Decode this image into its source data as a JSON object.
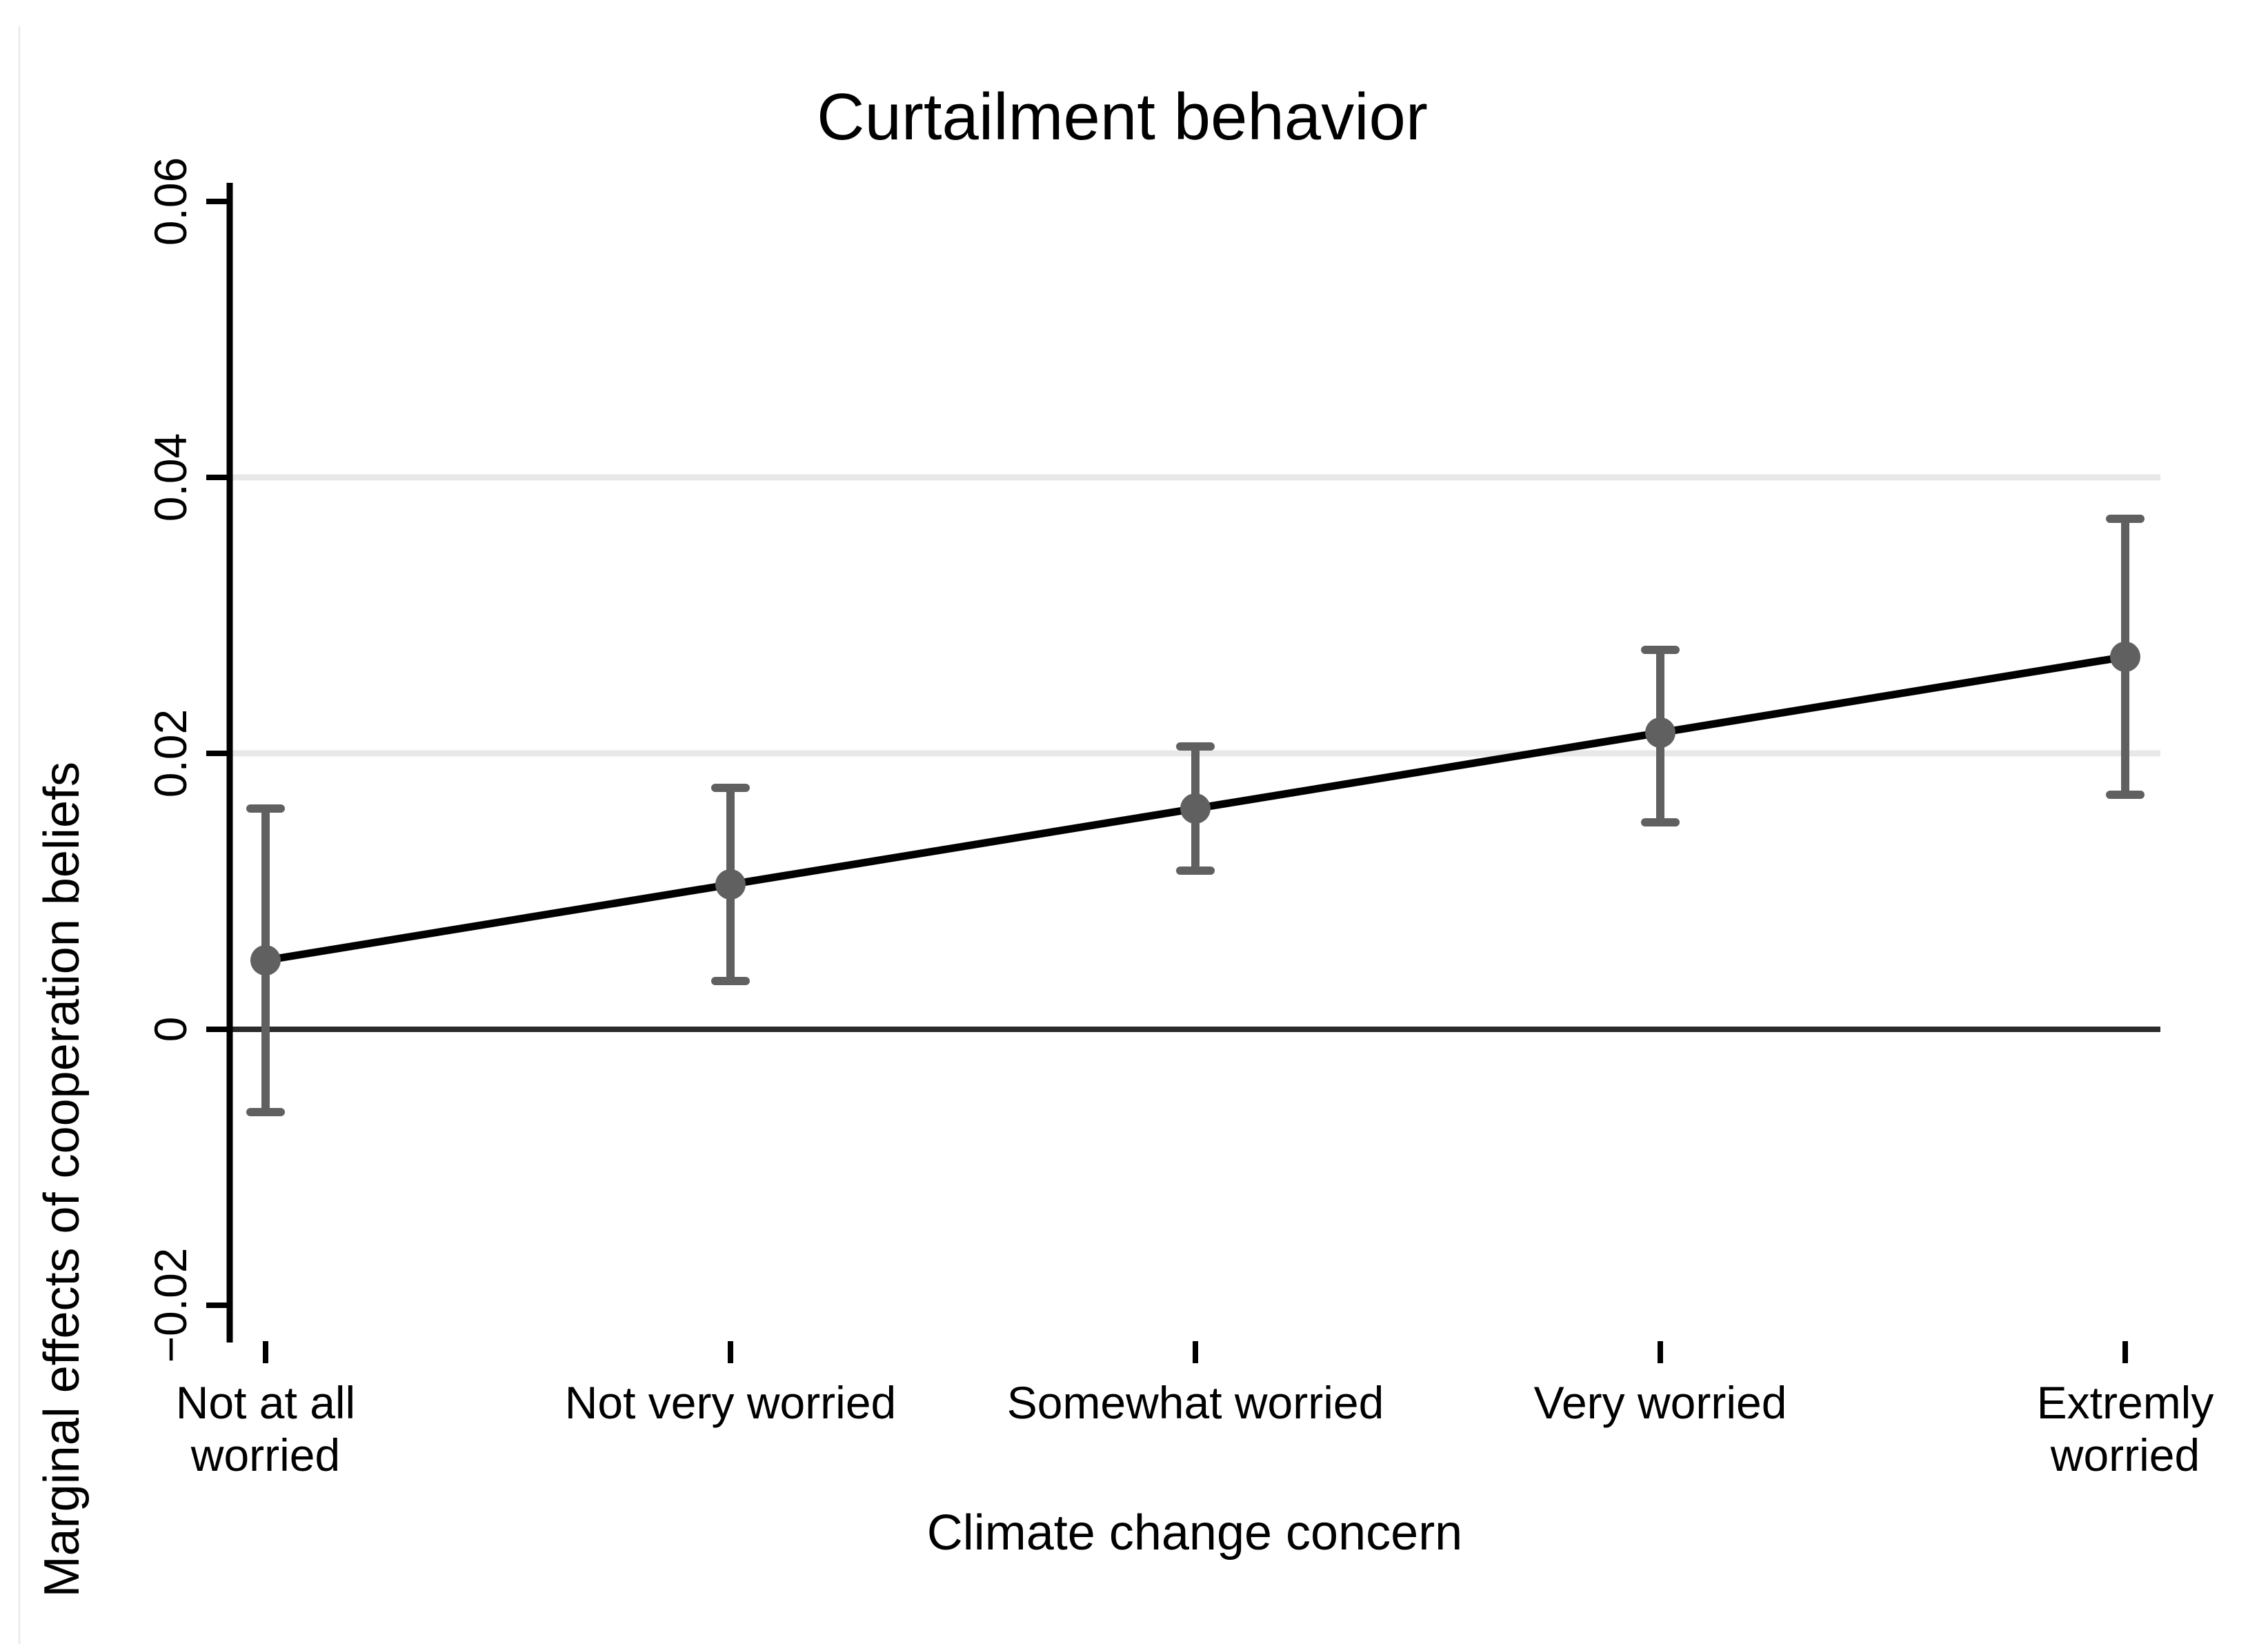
{
  "title": "Curtailment behavior",
  "chart_data": {
    "type": "scatter",
    "variant": "point_estimates_with_95ci_error_bars",
    "title": "Curtailment behavior",
    "xlabel": "Climate change concern",
    "ylabel": "Marginal effects of cooperation beliefs",
    "categories": [
      "Not at all worried",
      "Not very worried",
      "Somewhat worried",
      "Very worried",
      "Extremly worried"
    ],
    "category_tick_lines": [
      [
        "Not at all",
        "worried"
      ],
      [
        "Not very worried"
      ],
      [
        "Somewhat worried"
      ],
      [
        "Very worried"
      ],
      [
        "Extremly",
        "worried"
      ]
    ],
    "series": [
      {
        "name": "Marginal effects of cooperation beliefs",
        "values": [
          0.005,
          0.0105,
          0.016,
          0.0215,
          0.027
        ],
        "ci_low": [
          -0.006,
          0.0035,
          0.0115,
          0.015,
          0.017
        ],
        "ci_high": [
          0.016,
          0.0175,
          0.0205,
          0.0275,
          0.037
        ]
      }
    ],
    "connect_points_with_line": true,
    "ylim": [
      -0.0225,
      0.0614
    ],
    "yticks": [
      -0.02,
      0,
      0.02,
      0.04,
      0.06
    ],
    "ytick_labels": [
      "−0.02",
      "0",
      "0.02",
      "0.04",
      "0.06"
    ],
    "gridlines_at": [
      0.02,
      0.04
    ],
    "reference_line_at": 0,
    "grid": true,
    "legend_position": "none",
    "colors": {
      "marker": "#606060",
      "error_bar": "#606060",
      "trend_line": "#000000",
      "zero_line": "#2b2b2b",
      "gridline": "#e8e8e8",
      "axis": "#000000",
      "text": "#000000",
      "background": "#ffffff",
      "figure_border": "#ececec"
    }
  }
}
